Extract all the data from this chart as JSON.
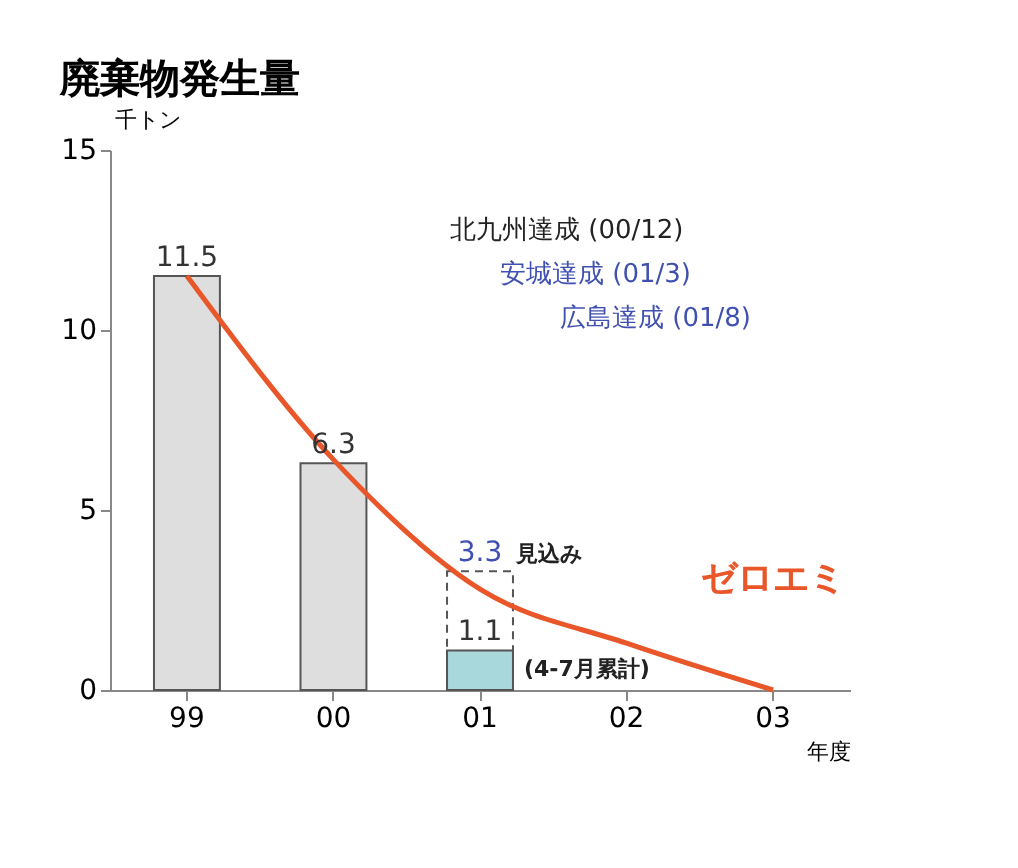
{
  "chart_data": {
    "type": "bar",
    "title": "廃棄物発生量",
    "ylabel": "千トン",
    "xlabel": "年度",
    "categories": [
      "99",
      "00",
      "01",
      "02",
      "03"
    ],
    "series": [
      {
        "values": [
          null,
          null,
          3.3,
          null,
          null
        ],
        "color": "#ffffff",
        "line_style": "dashed",
        "value_labels": [
          null,
          null,
          "3.3",
          null,
          null
        ]
      },
      {
        "values": [
          11.5,
          6.3,
          1.1,
          null,
          null
        ],
        "colors": [
          "#dedede",
          "#dedede",
          "#a9d8dc",
          "#dedede",
          "#dedede"
        ],
        "value_labels": [
          "11.5",
          "6.3",
          "1.1",
          null,
          null
        ]
      },
      {
        "type": "line",
        "values": [
          11.5,
          6.4,
          2.8,
          1.3,
          0
        ],
        "color": "#e8562a"
      }
    ],
    "ylim": [
      0,
      15
    ],
    "yticks": [
      0,
      5,
      10,
      15
    ],
    "grid": false,
    "annotations": [
      "北九州達成 (00/12)",
      "安城達成 (01/3)",
      "広島達成 (01/8)",
      {
        "text": "見込み",
        "x": "01",
        "y": 3.3
      },
      {
        "text": "(4-7月累計)",
        "x": "01",
        "y": 1.1
      },
      {
        "text": "ゼロエミ",
        "x": "03",
        "y": 0
      }
    ]
  }
}
